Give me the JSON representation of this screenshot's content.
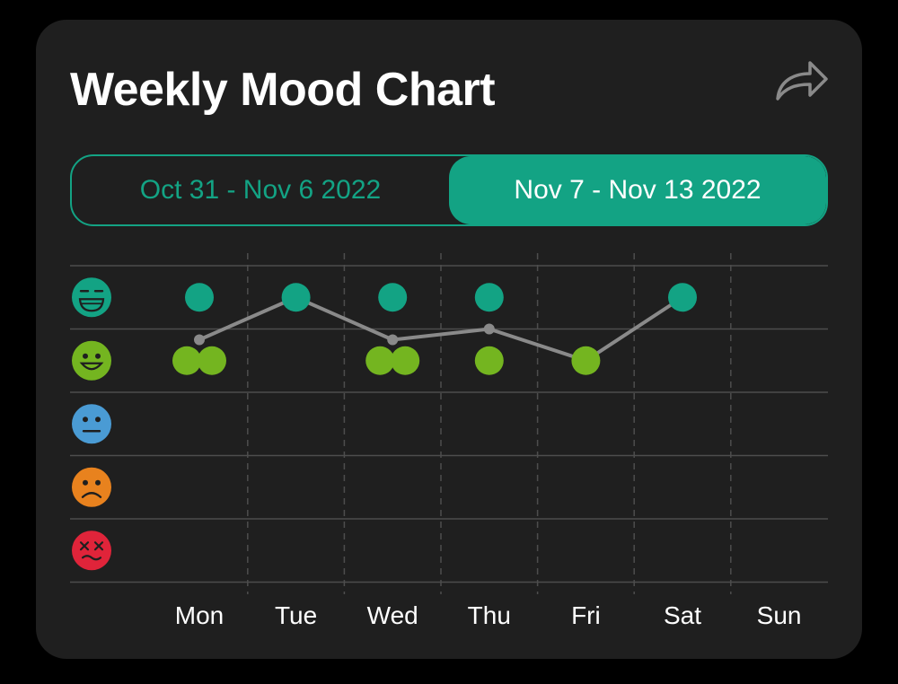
{
  "header": {
    "title": "Weekly Mood Chart",
    "share_icon": "share-forward-icon"
  },
  "week_selector": {
    "options": [
      "Oct 31 - Nov 6 2022",
      "Nov 7 - Nov 13 2022"
    ],
    "selected": "Nov 7 - Nov 13 2022"
  },
  "colors": {
    "card_background": "#1f1f1f",
    "accent": "#13a384",
    "grid": "#4d4d4d",
    "trend_line": "#8a8a8a",
    "mood_great": "#13a384",
    "mood_good": "#74b520",
    "mood_neutral": "#4a9bd4",
    "mood_bad": "#e8821e",
    "mood_awful": "#e0243a"
  },
  "chart_data": {
    "type": "scatter",
    "title": "",
    "xlabel": "",
    "ylabel": "",
    "categories": [
      "Mon",
      "Tue",
      "Wed",
      "Thu",
      "Fri",
      "Sat",
      "Sun"
    ],
    "y_levels": [
      {
        "value": 5,
        "icon": "grinning-face-icon",
        "color": "#13a384"
      },
      {
        "value": 4,
        "icon": "smiling-face-icon",
        "color": "#74b520"
      },
      {
        "value": 3,
        "icon": "neutral-face-icon",
        "color": "#4a9bd4"
      },
      {
        "value": 2,
        "icon": "frowning-face-icon",
        "color": "#e8821e"
      },
      {
        "value": 1,
        "icon": "dizzy-face-icon",
        "color": "#e0243a"
      }
    ],
    "ylim": [
      1,
      5
    ],
    "grid": true,
    "entries": [
      {
        "day": "Mon",
        "moods": [
          5,
          4,
          4
        ]
      },
      {
        "day": "Tue",
        "moods": [
          5
        ]
      },
      {
        "day": "Wed",
        "moods": [
          5,
          4,
          4
        ]
      },
      {
        "day": "Thu",
        "moods": [
          5,
          4
        ]
      },
      {
        "day": "Fri",
        "moods": [
          4
        ]
      },
      {
        "day": "Sat",
        "moods": [
          5
        ]
      },
      {
        "day": "Sun",
        "moods": []
      }
    ],
    "series": [
      {
        "type": "line",
        "values": [
          4.33,
          5,
          4.33,
          4.5,
          4,
          5,
          null
        ]
      }
    ]
  }
}
